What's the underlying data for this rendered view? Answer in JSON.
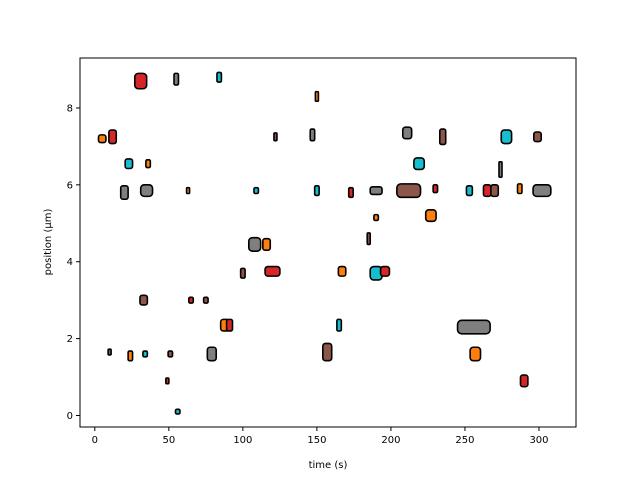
{
  "chart_data": {
    "type": "scatter",
    "title": "",
    "xlabel": "time (s)",
    "ylabel": "position (μm)",
    "xlim": [
      -10,
      325
    ],
    "ylim": [
      -0.3,
      9.3
    ],
    "xticks": [
      0,
      50,
      100,
      150,
      200,
      250,
      300
    ],
    "yticks": [
      0,
      2,
      4,
      6,
      8
    ],
    "grid": false,
    "legend": "none",
    "colors": {
      "red": "#d62728",
      "brown": "#8c564b",
      "gray": "#7f7f7f",
      "cyan": "#17becf",
      "orange": "#ff7f0e",
      "outline": "#000000"
    },
    "points": [
      {
        "x": 31,
        "y": 8.7,
        "color": "red",
        "w": 8,
        "h": 0.4
      },
      {
        "x": 55,
        "y": 8.75,
        "color": "gray",
        "w": 3,
        "h": 0.3
      },
      {
        "x": 84,
        "y": 8.8,
        "color": "cyan",
        "w": 3,
        "h": 0.25
      },
      {
        "x": 150,
        "y": 8.3,
        "color": "orange",
        "w": 2,
        "h": 0.25
      },
      {
        "x": 5,
        "y": 7.2,
        "color": "orange",
        "w": 5,
        "h": 0.2
      },
      {
        "x": 12,
        "y": 7.25,
        "color": "red",
        "w": 5,
        "h": 0.35
      },
      {
        "x": 122,
        "y": 7.25,
        "color": "brown",
        "w": 2,
        "h": 0.2
      },
      {
        "x": 147,
        "y": 7.3,
        "color": "gray",
        "w": 3,
        "h": 0.3
      },
      {
        "x": 211,
        "y": 7.35,
        "color": "gray",
        "w": 6,
        "h": 0.3
      },
      {
        "x": 235,
        "y": 7.25,
        "color": "brown",
        "w": 4,
        "h": 0.4
      },
      {
        "x": 278,
        "y": 7.25,
        "color": "cyan",
        "w": 7,
        "h": 0.35
      },
      {
        "x": 299,
        "y": 7.25,
        "color": "brown",
        "w": 5,
        "h": 0.25
      },
      {
        "x": 23,
        "y": 6.55,
        "color": "cyan",
        "w": 5,
        "h": 0.25
      },
      {
        "x": 36,
        "y": 6.55,
        "color": "orange",
        "w": 3,
        "h": 0.2
      },
      {
        "x": 219,
        "y": 6.55,
        "color": "cyan",
        "w": 7,
        "h": 0.3
      },
      {
        "x": 274,
        "y": 6.4,
        "color": "gray",
        "w": 2,
        "h": 0.4
      },
      {
        "x": 20,
        "y": 5.8,
        "color": "gray",
        "w": 5,
        "h": 0.35
      },
      {
        "x": 35,
        "y": 5.85,
        "color": "gray",
        "w": 8,
        "h": 0.3
      },
      {
        "x": 63,
        "y": 5.85,
        "color": "orange",
        "w": 2,
        "h": 0.15
      },
      {
        "x": 109,
        "y": 5.85,
        "color": "cyan",
        "w": 3,
        "h": 0.15
      },
      {
        "x": 150,
        "y": 5.85,
        "color": "cyan",
        "w": 3,
        "h": 0.25
      },
      {
        "x": 173,
        "y": 5.8,
        "color": "red",
        "w": 3,
        "h": 0.25
      },
      {
        "x": 190,
        "y": 5.85,
        "color": "gray",
        "w": 8,
        "h": 0.2
      },
      {
        "x": 212,
        "y": 5.85,
        "color": "brown",
        "w": 16,
        "h": 0.35
      },
      {
        "x": 230,
        "y": 5.9,
        "color": "red",
        "w": 3,
        "h": 0.2
      },
      {
        "x": 253,
        "y": 5.85,
        "color": "cyan",
        "w": 4,
        "h": 0.25
      },
      {
        "x": 265,
        "y": 5.85,
        "color": "red",
        "w": 5,
        "h": 0.3
      },
      {
        "x": 270,
        "y": 5.85,
        "color": "brown",
        "w": 5,
        "h": 0.3
      },
      {
        "x": 287,
        "y": 5.9,
        "color": "orange",
        "w": 3,
        "h": 0.25
      },
      {
        "x": 302,
        "y": 5.85,
        "color": "gray",
        "w": 12,
        "h": 0.3
      },
      {
        "x": 190,
        "y": 5.15,
        "color": "orange",
        "w": 3,
        "h": 0.15
      },
      {
        "x": 227,
        "y": 5.2,
        "color": "orange",
        "w": 7,
        "h": 0.3
      },
      {
        "x": 185,
        "y": 4.6,
        "color": "brown",
        "w": 2,
        "h": 0.3
      },
      {
        "x": 108,
        "y": 4.45,
        "color": "gray",
        "w": 8,
        "h": 0.35
      },
      {
        "x": 116,
        "y": 4.45,
        "color": "orange",
        "w": 5,
        "h": 0.3
      },
      {
        "x": 100,
        "y": 3.7,
        "color": "brown",
        "w": 3,
        "h": 0.25
      },
      {
        "x": 120,
        "y": 3.75,
        "color": "red",
        "w": 10,
        "h": 0.25
      },
      {
        "x": 167,
        "y": 3.75,
        "color": "orange",
        "w": 5,
        "h": 0.25
      },
      {
        "x": 190,
        "y": 3.7,
        "color": "cyan",
        "w": 8,
        "h": 0.35
      },
      {
        "x": 196,
        "y": 3.75,
        "color": "red",
        "w": 6,
        "h": 0.25
      },
      {
        "x": 33,
        "y": 3.0,
        "color": "brown",
        "w": 5,
        "h": 0.25
      },
      {
        "x": 65,
        "y": 3.0,
        "color": "red",
        "w": 3,
        "h": 0.15
      },
      {
        "x": 75,
        "y": 3.0,
        "color": "brown",
        "w": 3,
        "h": 0.15
      },
      {
        "x": 88,
        "y": 2.35,
        "color": "orange",
        "w": 6,
        "h": 0.3
      },
      {
        "x": 91,
        "y": 2.35,
        "color": "red",
        "w": 4,
        "h": 0.3
      },
      {
        "x": 165,
        "y": 2.35,
        "color": "cyan",
        "w": 3,
        "h": 0.3
      },
      {
        "x": 256,
        "y": 2.3,
        "color": "gray",
        "w": 22,
        "h": 0.35
      },
      {
        "x": 10,
        "y": 1.65,
        "color": "brown",
        "w": 2,
        "h": 0.15
      },
      {
        "x": 24,
        "y": 1.55,
        "color": "orange",
        "w": 3,
        "h": 0.25
      },
      {
        "x": 34,
        "y": 1.6,
        "color": "cyan",
        "w": 3,
        "h": 0.15
      },
      {
        "x": 51,
        "y": 1.6,
        "color": "brown",
        "w": 3,
        "h": 0.15
      },
      {
        "x": 79,
        "y": 1.6,
        "color": "gray",
        "w": 6,
        "h": 0.35
      },
      {
        "x": 157,
        "y": 1.65,
        "color": "brown",
        "w": 6,
        "h": 0.45
      },
      {
        "x": 257,
        "y": 1.6,
        "color": "orange",
        "w": 7,
        "h": 0.35
      },
      {
        "x": 49,
        "y": 0.9,
        "color": "red",
        "w": 2,
        "h": 0.15
      },
      {
        "x": 290,
        "y": 0.9,
        "color": "red",
        "w": 5,
        "h": 0.3
      },
      {
        "x": 56,
        "y": 0.1,
        "color": "cyan",
        "w": 3,
        "h": 0.12
      }
    ]
  }
}
